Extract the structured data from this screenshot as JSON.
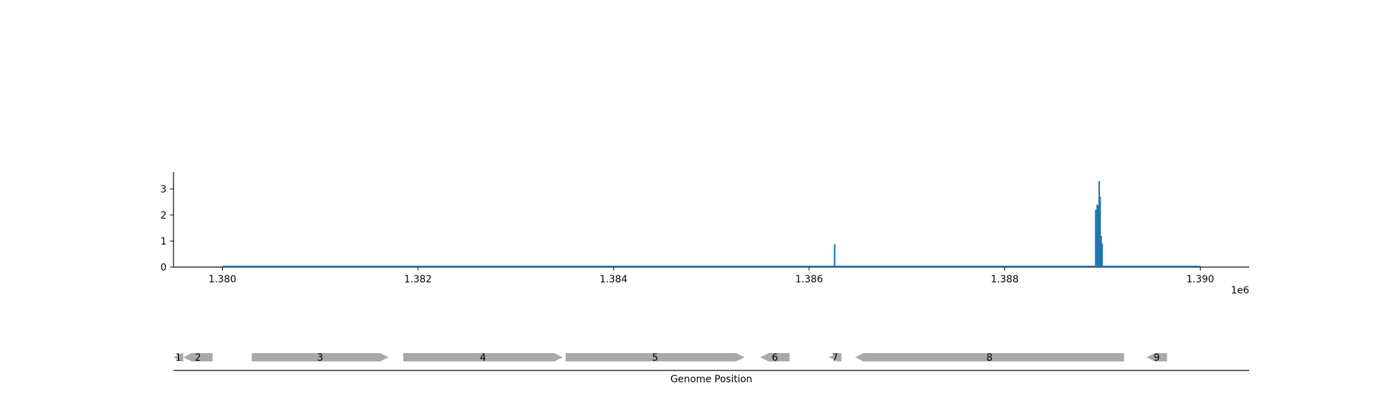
{
  "colors": {
    "signal": "#1f77b4",
    "gene": "#a9a9a9",
    "axis": "#000000"
  },
  "chart_data": [
    {
      "type": "bar",
      "title": "",
      "xlabel": "",
      "ylabel": "",
      "x_offset_label": "1e6",
      "xlim": [
        1379500,
        1390500
      ],
      "ylim": [
        0,
        3.65
      ],
      "xticks": [
        1380000,
        1382000,
        1384000,
        1386000,
        1388000,
        1390000
      ],
      "xtick_labels": [
        "1.380",
        "1.382",
        "1.384",
        "1.386",
        "1.388",
        "1.390"
      ],
      "yticks": [
        0,
        1,
        2,
        3
      ],
      "ytick_labels": [
        "0",
        "1",
        "2",
        "3"
      ],
      "baseline": [
        1380000,
        1390000
      ],
      "series": [
        {
          "x": [
            1386260,
            1388930,
            1388945,
            1388955,
            1388965,
            1388975,
            1388985,
            1388995
          ],
          "y": [
            0.88,
            2.2,
            2.4,
            2.35,
            3.3,
            2.7,
            1.2,
            0.9
          ]
        }
      ],
      "grid": false
    },
    {
      "type": "gene_track",
      "xlabel": "Genome Position",
      "genes": [
        {
          "label": "1",
          "start": 1379500,
          "end": 1379600,
          "strand": "-"
        },
        {
          "label": "2",
          "start": 1379600,
          "end": 1379900,
          "strand": "-"
        },
        {
          "label": "3",
          "start": 1380300,
          "end": 1381700,
          "strand": "+"
        },
        {
          "label": "4",
          "start": 1381850,
          "end": 1383480,
          "strand": "+"
        },
        {
          "label": "5",
          "start": 1383510,
          "end": 1385340,
          "strand": "+"
        },
        {
          "label": "6",
          "start": 1385500,
          "end": 1385800,
          "strand": "-"
        },
        {
          "label": "7",
          "start": 1386200,
          "end": 1386330,
          "strand": "-"
        },
        {
          "label": "8",
          "start": 1386470,
          "end": 1389220,
          "strand": "-"
        },
        {
          "label": "9",
          "start": 1389450,
          "end": 1389660,
          "strand": "-"
        }
      ]
    }
  ]
}
